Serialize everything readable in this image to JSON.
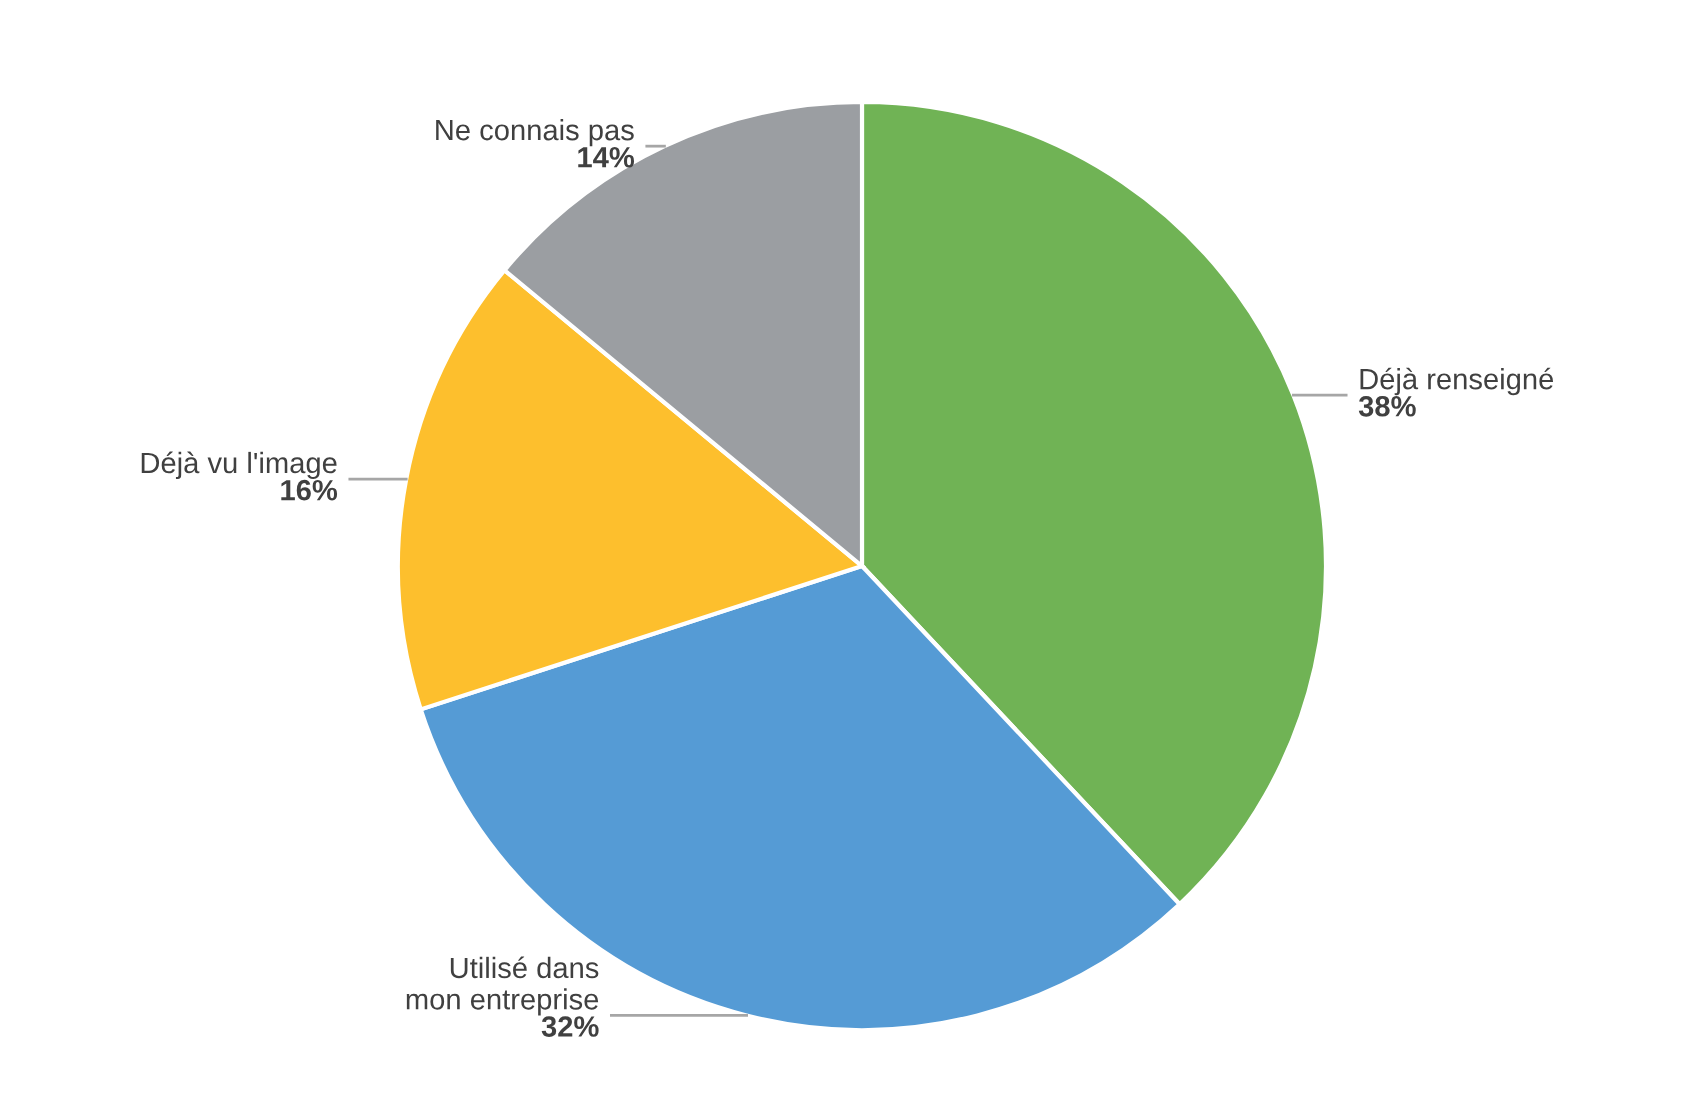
{
  "chart_data": {
    "type": "pie",
    "categories": [
      "Déjà renseigné",
      "Utilisé dans\nmon entreprise",
      "Déjà vu l'image",
      "Ne connais pas"
    ],
    "values": [
      38,
      32,
      16,
      14
    ],
    "colors": [
      "#70b355",
      "#559bd5",
      "#fdbf2d",
      "#9b9ea2"
    ],
    "value_labels": [
      "38%",
      "32%",
      "16%",
      "14%"
    ]
  }
}
